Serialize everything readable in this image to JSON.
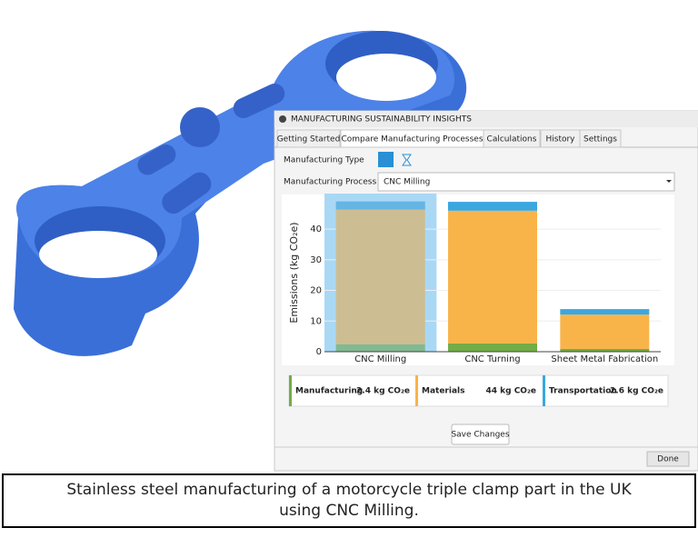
{
  "panel": {
    "title": "MANUFACTURING SUSTAINABILITY INSIGHTS",
    "tabs": [
      "Getting Started",
      "Compare Manufacturing Processes",
      "Calculations",
      "History",
      "Settings"
    ],
    "manufacturing_type_label": "Manufacturing Type",
    "manufacturing_process_label": "Manufacturing Process",
    "manufacturing_process_value": "CNC Milling",
    "summary_values": [
      "2.4 kg CO₂e",
      "44 kg CO₂e",
      "2.6 kg CO₂e"
    ],
    "save_button": "Save Changes",
    "done_button": "Done"
  },
  "chart_data": {
    "type": "stacked_bar",
    "y_label": "Emissions (kg CO₂e)",
    "categories": [
      "CNC Milling",
      "CNC Turning",
      "Sheet Metal Fabrication"
    ],
    "series": [
      {
        "name": "Manufacturing",
        "color": "#72ad47",
        "values": [
          2.4,
          2.7,
          0.9
        ]
      },
      {
        "name": "Materials",
        "color": "#f9b449",
        "values": [
          44,
          43.3,
          11.2
        ]
      },
      {
        "name": "Transportation",
        "color": "#3ba7de",
        "values": [
          2.6,
          2.9,
          1.8
        ]
      }
    ],
    "ylim": [
      0,
      51
    ],
    "yticks": [
      0,
      10,
      20,
      30,
      40
    ],
    "grid": true,
    "selected_category": 0
  },
  "caption": [
    "Stainless steel manufacturing of a motorcycle triple clamp part in the UK",
    "using CNC Milling."
  ]
}
